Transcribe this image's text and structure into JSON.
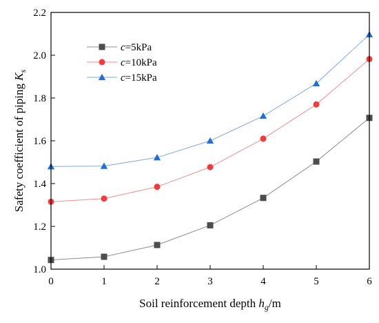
{
  "chart_data": {
    "type": "line",
    "title": "",
    "xlabel": {
      "main": "Soil reinforcement depth ",
      "var": "h",
      "sub": "g",
      "unit": "/m"
    },
    "ylabel": {
      "main": "Safety coefficient of piping ",
      "var": "K",
      "sub": "s"
    },
    "xlim": [
      0,
      6
    ],
    "ylim": [
      1.0,
      2.2
    ],
    "xticks": [
      0,
      1,
      2,
      3,
      4,
      5,
      6
    ],
    "yticks": [
      1.0,
      1.2,
      1.4,
      1.6,
      1.8,
      2.0,
      2.2
    ],
    "xtick_labels": [
      "0",
      "1",
      "2",
      "3",
      "4",
      "5",
      "6"
    ],
    "ytick_labels": [
      "1.0",
      "1.2",
      "1.4",
      "1.6",
      "1.8",
      "2.0",
      "2.2"
    ],
    "grid": false,
    "legend_position": "top-left",
    "x": [
      0,
      1,
      2,
      3,
      4,
      5,
      6
    ],
    "series": [
      {
        "name": "c=5kPa",
        "legend_var": "c",
        "legend_rest": "=5kPa",
        "marker": "square",
        "color": "#4d4d4d",
        "line_color": "#8c8c8c",
        "values": [
          1.043,
          1.058,
          1.113,
          1.205,
          1.333,
          1.503,
          1.707
        ]
      },
      {
        "name": "c=10kPa",
        "legend_var": "c",
        "legend_rest": "=10kPa",
        "marker": "circle",
        "color": "#f03c3c",
        "line_color": "#f08c8c",
        "values": [
          1.315,
          1.33,
          1.385,
          1.477,
          1.61,
          1.77,
          1.982
        ]
      },
      {
        "name": "c=15kPa",
        "legend_var": "c",
        "legend_rest": "=15kPa",
        "marker": "triangle",
        "color": "#1f6fd6",
        "line_color": "#7fa8e0",
        "values": [
          1.48,
          1.482,
          1.522,
          1.6,
          1.716,
          1.868,
          2.097
        ]
      }
    ]
  }
}
